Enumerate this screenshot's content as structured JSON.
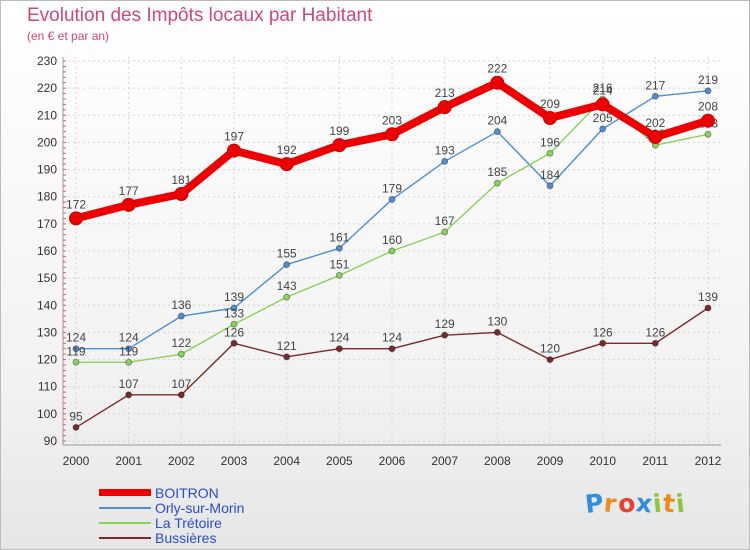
{
  "chart_data": {
    "type": "line",
    "title": "Evolution des Impôts locaux par Habitant",
    "subtitle": "(en € et par an)",
    "xlabel": "",
    "ylabel": "",
    "categories": [
      "2000",
      "2001",
      "2002",
      "2003",
      "2004",
      "2005",
      "2006",
      "2007",
      "2008",
      "2009",
      "2010",
      "2011",
      "2012"
    ],
    "ylim": [
      90,
      230
    ],
    "yticks": [
      90,
      100,
      110,
      120,
      130,
      140,
      150,
      160,
      170,
      180,
      190,
      200,
      210,
      220,
      230
    ],
    "grid": true,
    "series": [
      {
        "name": "BOITRON",
        "color": "#ee0000",
        "emphasis": true,
        "values": [
          172,
          177,
          181,
          197,
          192,
          199,
          203,
          213,
          222,
          209,
          214,
          202,
          208
        ]
      },
      {
        "name": "Orly-sur-Morin",
        "color": "#4f8fcf",
        "emphasis": false,
        "values": [
          124,
          124,
          136,
          139,
          155,
          161,
          179,
          193,
          204,
          184,
          205,
          217,
          219
        ]
      },
      {
        "name": "La Trétoire",
        "color": "#88d35a",
        "emphasis": false,
        "values": [
          119,
          119,
          122,
          133,
          143,
          151,
          160,
          167,
          185,
          196,
          216,
          199,
          203
        ]
      },
      {
        "name": "Bussières",
        "color": "#7a2a2a",
        "emphasis": false,
        "values": [
          95,
          107,
          107,
          126,
          121,
          124,
          124,
          129,
          130,
          120,
          126,
          126,
          139
        ]
      }
    ]
  },
  "logo": {
    "letters": [
      "P",
      "r",
      "o",
      "x",
      "i",
      "t",
      "i"
    ],
    "colors": [
      "#2f8fdc",
      "#f08a1c",
      "#ea3f2a",
      "#2f8fdc",
      "#8cc63f",
      "#f08a1c",
      "#8cc63f"
    ]
  }
}
